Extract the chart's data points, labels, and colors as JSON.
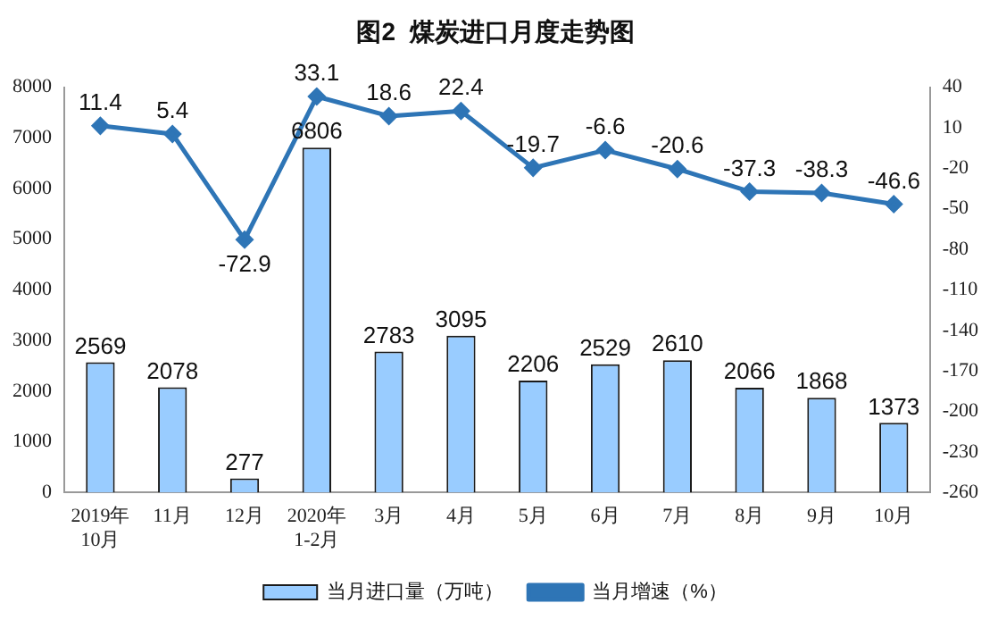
{
  "chart_data": {
    "type": "bar",
    "title": "图2  煤炭进口月度走势图",
    "categories": [
      "2019年\n10月",
      "11月",
      "12月",
      "2020年\n1-2月",
      "3月",
      "4月",
      "5月",
      "6月",
      "7月",
      "8月",
      "9月",
      "10月"
    ],
    "series": [
      {
        "name": "当月进口量（万吨）",
        "color": "#99ccff",
        "values": [
          2569,
          2078,
          277,
          6806,
          2783,
          3095,
          2206,
          2529,
          2610,
          2066,
          1868,
          1373
        ]
      },
      {
        "name": "当月增速（%）",
        "type": "line",
        "axis": "y2",
        "color": "#2e75b6",
        "values": [
          11.4,
          5.4,
          -72.9,
          33.1,
          18.6,
          22.4,
          -19.7,
          -6.6,
          -20.6,
          -37.3,
          -38.3,
          -46.6
        ]
      }
    ],
    "ylim": [
      0,
      8000
    ],
    "yticks": [
      0,
      1000,
      2000,
      3000,
      4000,
      5000,
      6000,
      7000,
      8000
    ],
    "y2lim": [
      -260,
      40
    ],
    "y2ticks": [
      -260,
      -230,
      -200,
      -170,
      -140,
      -110,
      -80,
      -50,
      -20,
      10,
      40
    ],
    "grid": false,
    "legend": "bottom",
    "marker": "diamond",
    "line_style": "solid",
    "data_labels": true
  }
}
